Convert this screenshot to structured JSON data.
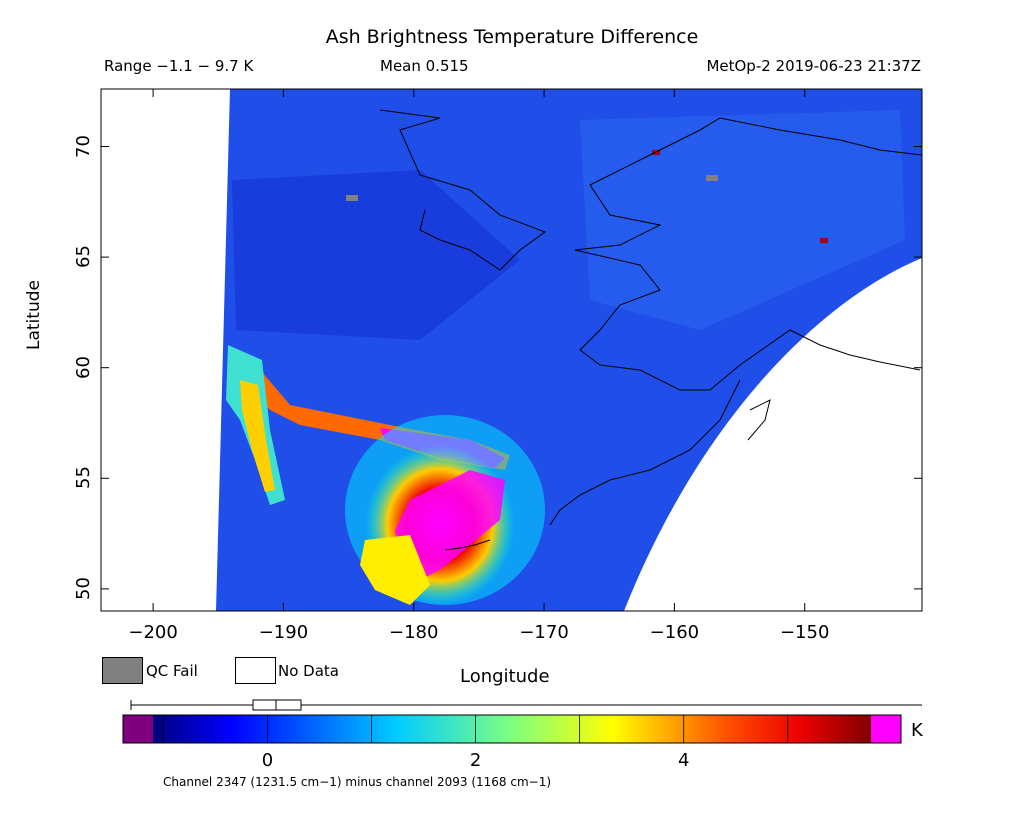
{
  "header": {
    "title": "Ash Brightness Temperature Difference",
    "range": "Range −1.1 − 9.7 K",
    "mean": "Mean 0.515",
    "satellite": "MetOp-2 2019-06-23 21:37Z"
  },
  "legend": {
    "qc_fail": "QC Fail",
    "no_data": "No Data",
    "qc_fail_color": "#808080",
    "no_data_color": "#ffffff"
  },
  "colorbar": {
    "unit": "K",
    "ticks": [
      "0",
      "2",
      "4"
    ],
    "min_value": -1.1,
    "max_value": 5.8,
    "under_color": "#7f007f",
    "over_color": "#ff00ff",
    "footnote": "Channel 2347 (1231.5 cm−1) minus channel 2093 (1168 cm−1)"
  },
  "chart_data": {
    "type": "heatmap",
    "title": "Ash Brightness Temperature Difference",
    "xlabel": "Longitude",
    "ylabel": "Latitude",
    "xlim": [
      -204,
      -141
    ],
    "ylim": [
      49,
      72.6
    ],
    "xticks": [
      -200,
      -190,
      -180,
      -170,
      -160,
      -150
    ],
    "xtick_labels": [
      "−200",
      "−190",
      "−180",
      "−170",
      "−160",
      "−150"
    ],
    "yticks": [
      50,
      55,
      60,
      65,
      70
    ],
    "ytick_labels": [
      "50",
      "55",
      "60",
      "65",
      "70"
    ],
    "value_unit": "K",
    "features": [
      {
        "name": "ash plume main body",
        "lon_range": [
          -182,
          -174
        ],
        "lat_range": [
          50,
          57
        ],
        "value_K": ">5.8"
      },
      {
        "name": "ash streak westward",
        "lon_range": [
          -193,
          -177
        ],
        "lat_range": [
          56,
          58
        ],
        "value_K": "4 to >5.8"
      },
      {
        "name": "ash trail west edge",
        "lon_range": [
          -195,
          -191
        ],
        "lat_range": [
          54,
          60
        ],
        "value_K": "2 to 5"
      },
      {
        "name": "background",
        "value_K": "-0.5 to 1"
      }
    ]
  }
}
